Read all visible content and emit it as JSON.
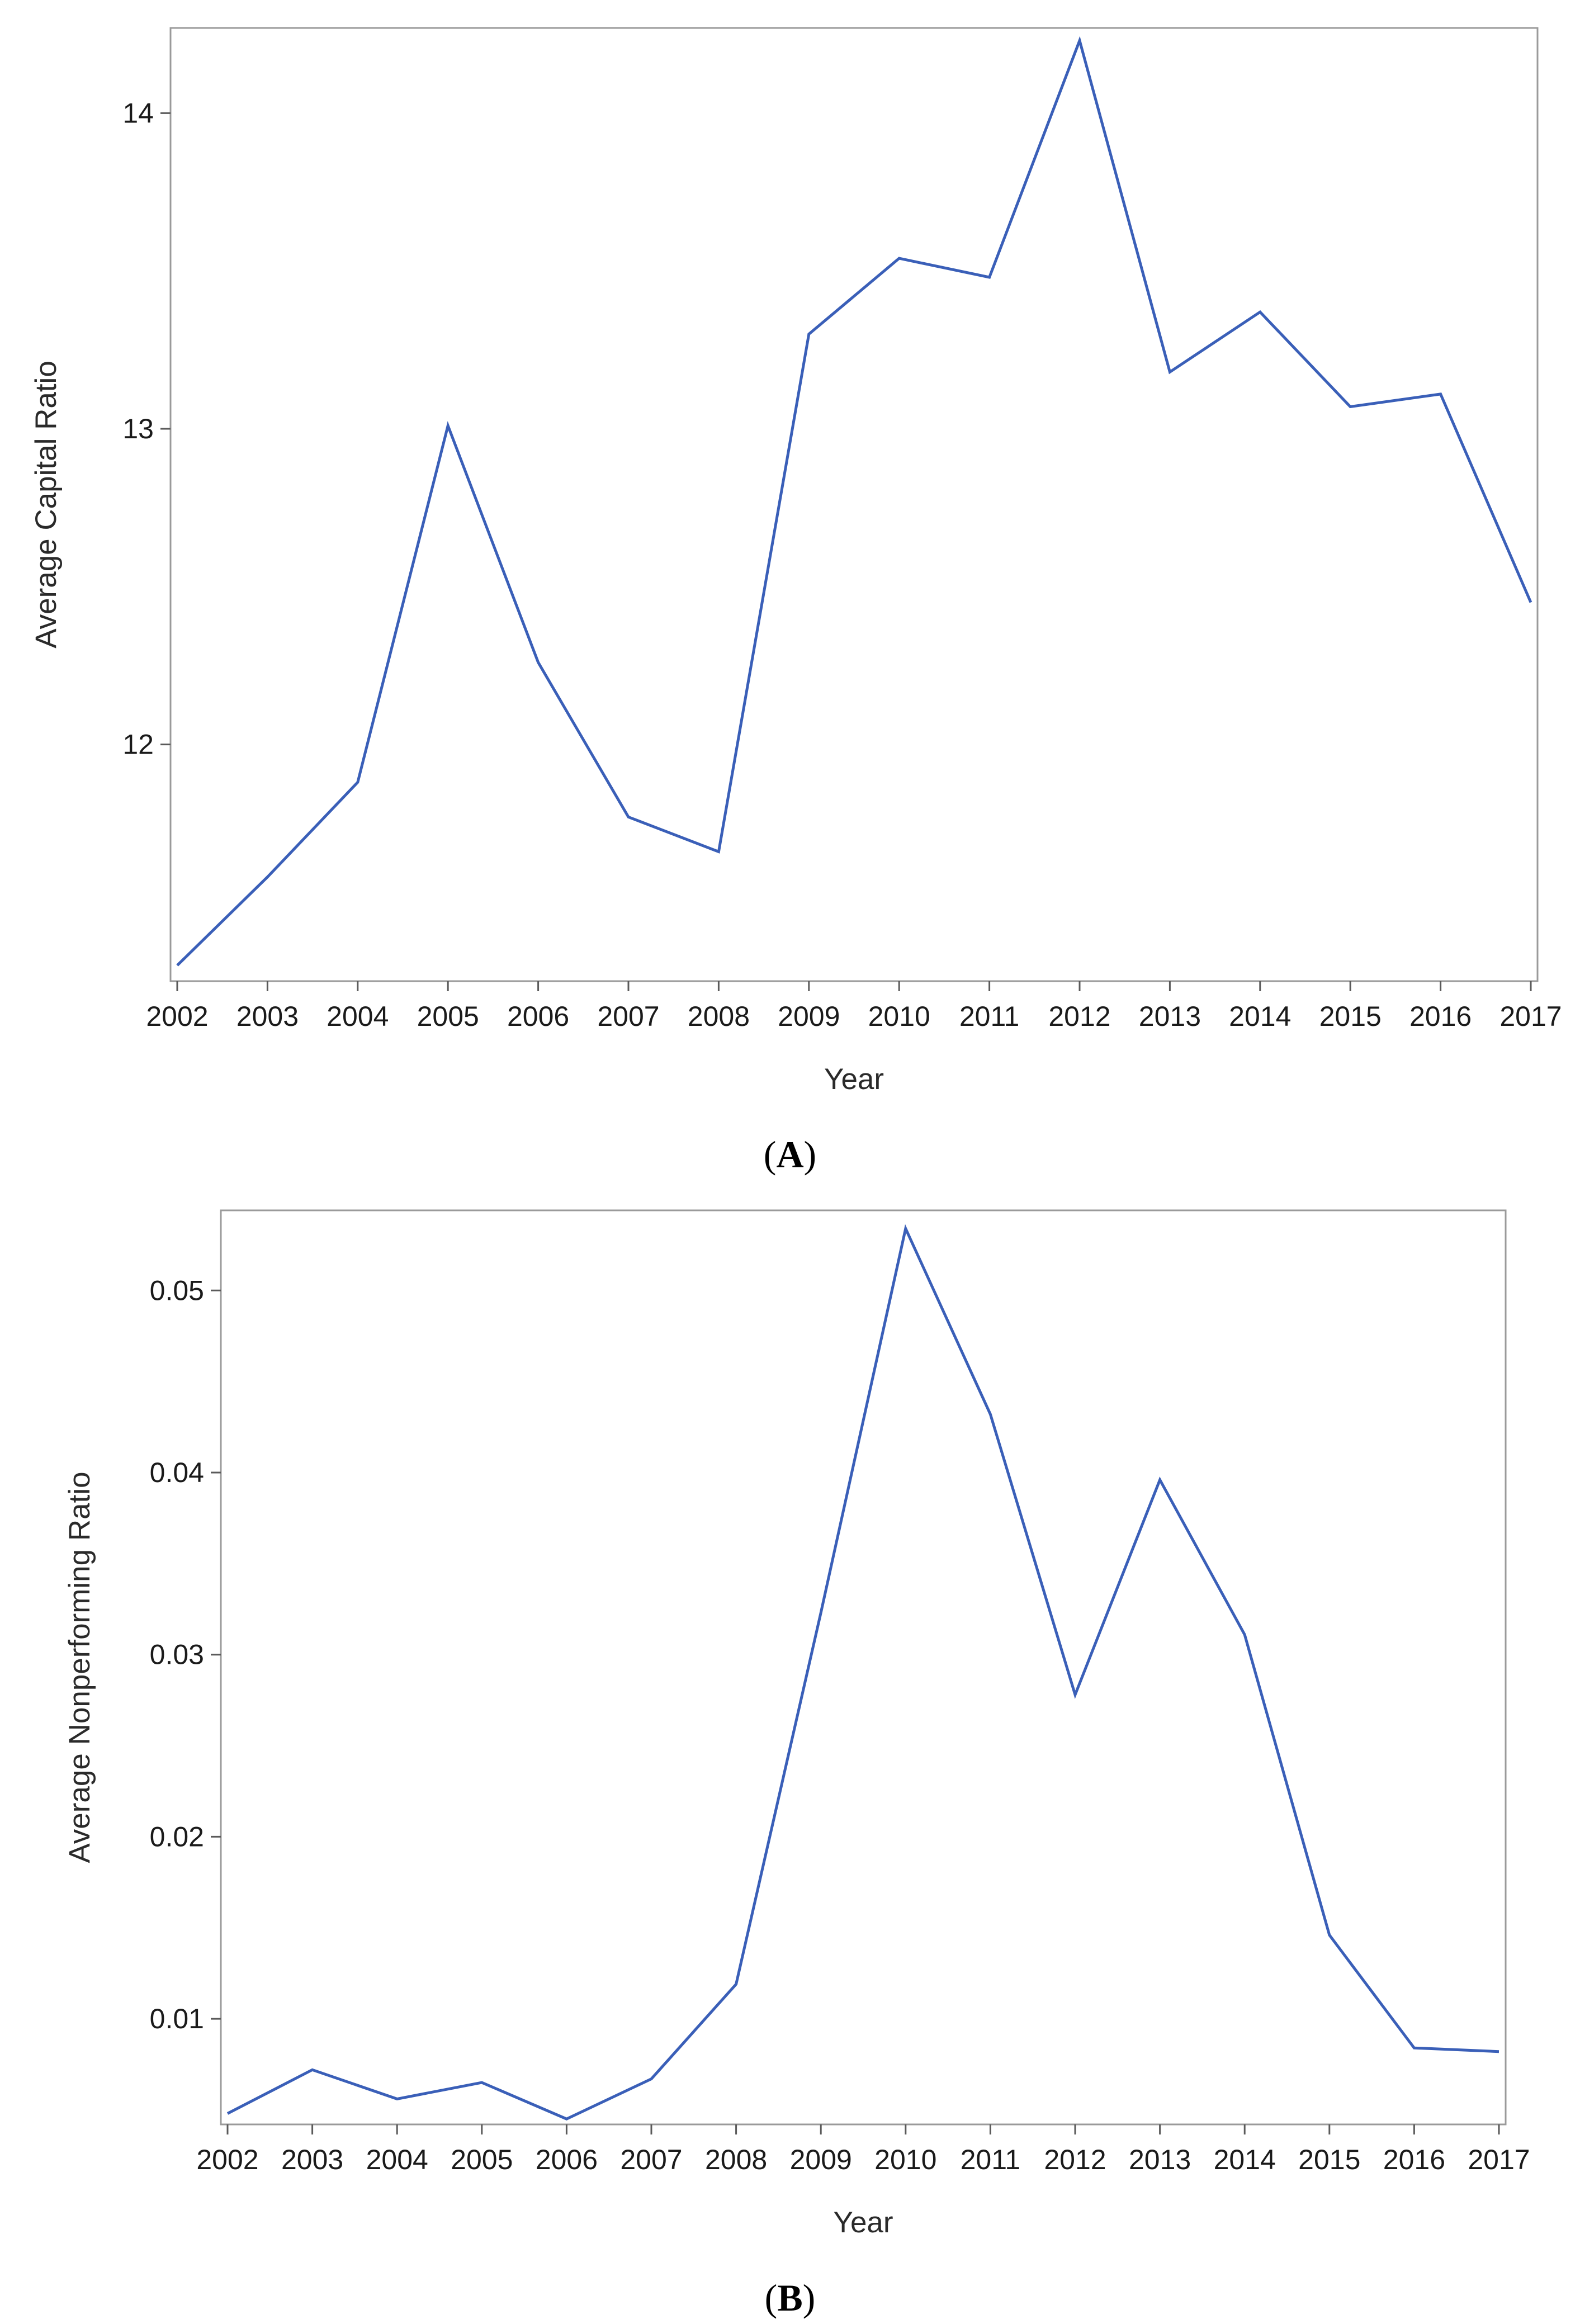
{
  "colors": {
    "line": "#3a5fb8",
    "frame": "#9a9a9a",
    "text": "#1a1a1a"
  },
  "chart_data": [
    {
      "type": "line",
      "panel_label": "A",
      "xlabel": "Year",
      "ylabel": "Average Capital Ratio",
      "x": [
        2002,
        2003,
        2004,
        2005,
        2006,
        2007,
        2008,
        2009,
        2010,
        2011,
        2012,
        2013,
        2014,
        2015,
        2016,
        2017
      ],
      "y": [
        11.3,
        11.58,
        11.88,
        13.01,
        12.26,
        11.77,
        11.66,
        13.3,
        13.54,
        13.48,
        14.23,
        13.18,
        13.37,
        13.07,
        13.11,
        12.45
      ],
      "xticks": [
        "2002",
        "2003",
        "2004",
        "2005",
        "2006",
        "2007",
        "2008",
        "2009",
        "2010",
        "2011",
        "2012",
        "2013",
        "2014",
        "2015",
        "2016",
        "2017"
      ],
      "yticks": [
        12,
        13,
        14
      ],
      "ytick_labels": [
        "12",
        "13",
        "14"
      ],
      "ylim": [
        11.25,
        14.27
      ],
      "grid": false,
      "legend": "none"
    },
    {
      "type": "line",
      "panel_label": "B",
      "xlabel": "Year",
      "ylabel": "Average Nonperforming Ratio",
      "x": [
        2002,
        2003,
        2004,
        2005,
        2006,
        2007,
        2008,
        2009,
        2010,
        2011,
        2012,
        2013,
        2014,
        2015,
        2016,
        2017
      ],
      "y": [
        0.0048,
        0.0072,
        0.0056,
        0.0065,
        0.0045,
        0.0067,
        0.0119,
        0.0323,
        0.0534,
        0.0432,
        0.0278,
        0.0396,
        0.0311,
        0.0146,
        0.0084,
        0.0082
      ],
      "xticks": [
        "2002",
        "2003",
        "2004",
        "2005",
        "2006",
        "2007",
        "2008",
        "2009",
        "2010",
        "2011",
        "2012",
        "2013",
        "2014",
        "2015",
        "2016",
        "2017"
      ],
      "yticks": [
        0.01,
        0.02,
        0.03,
        0.04,
        0.05
      ],
      "ytick_labels": [
        "0.01",
        "0.02",
        "0.03",
        "0.04",
        "0.05"
      ],
      "ylim": [
        0.0042,
        0.0544
      ],
      "grid": false,
      "legend": "none"
    }
  ]
}
